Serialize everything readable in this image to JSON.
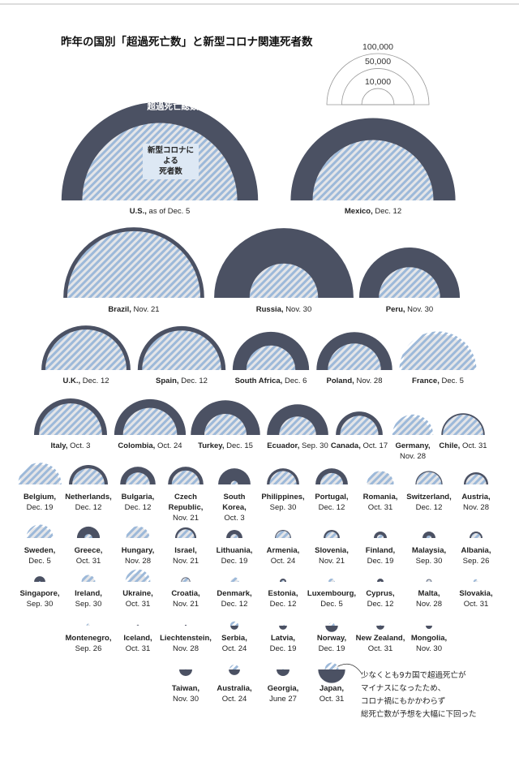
{
  "chart_data": {
    "type": "semicircle",
    "title": "昨年の国別「超過死亡数」と新型コロナ関連死者数",
    "size_legend": [
      {
        "value": 100000,
        "label": "100,000"
      },
      {
        "value": 50000,
        "label": "50,000"
      },
      {
        "value": 10000,
        "label": "10,000"
      }
    ],
    "categories": [
      "U.S.,",
      "Mexico,",
      "Brazil,",
      "Russia,",
      "Peru,",
      "U.K.,",
      "Spain,",
      "South Africa,",
      "Poland,",
      "France,",
      "Italy,",
      "Colombia,",
      "Turkey,",
      "Ecuador,",
      "Canada,",
      "Germany,",
      "Chile,",
      "Belgium,",
      "Netherlands,",
      "Bulgaria,",
      "Czech\nRepublic,",
      "South\nKorea,",
      "Philippines,",
      "Portugal,",
      "Romania,",
      "Switzerland,",
      "Austria,",
      "Sweden,",
      "Greece,",
      "Hungary,",
      "Israel,",
      "Lithuania,",
      "Armenia,",
      "Slovenia,",
      "Finland,",
      "Malaysia,",
      "Albania,",
      "Singapore,",
      "Ireland,",
      "Ukraine,",
      "Croatia,",
      "Denmark,",
      "Estonia,",
      "Luxembourg,",
      "Cyprus,",
      "Malta,",
      "Slovakia,",
      "Montenegro,",
      "Iceland,",
      "Liechtenstein,",
      "Serbia,",
      "Latvia,",
      "Norway,",
      "New Zealand,",
      "Mongolia,",
      "Taiwan,",
      "Australia,",
      "Georgia,",
      "Japan,"
    ],
    "dates": [
      "as of Dec. 5",
      "Dec. 12",
      "Nov. 21",
      "Nov. 30",
      "Nov. 30",
      "Dec. 12",
      "Dec. 12",
      "Dec. 6",
      "Nov. 28",
      "Dec. 5",
      "Oct. 3",
      "Oct. 24",
      "Dec. 15",
      "Sep. 30",
      "Oct. 17",
      "Nov. 28",
      "Oct. 31",
      "Dec. 19",
      "Dec. 12",
      "Dec. 12",
      "Nov. 21",
      "Oct. 3",
      "Sep. 30",
      "Dec. 12",
      "Oct. 31",
      "Dec. 12",
      "Nov. 28",
      "Dec. 5",
      "Oct. 31",
      "Nov. 28",
      "Nov. 21",
      "Dec. 19",
      "Oct. 24",
      "Nov. 21",
      "Dec. 19",
      "Sep. 30",
      "Sep. 26",
      "Sep. 30",
      "Sep. 30",
      "Oct. 31",
      "Nov. 21",
      "Dec. 12",
      "Dec. 12",
      "Dec. 5",
      "Dec. 12",
      "Nov. 28",
      "Oct. 31",
      "Sep. 26",
      "Oct. 31",
      "Nov. 28",
      "Oct. 24",
      "Dec. 19",
      "Dec. 19",
      "Oct. 31",
      "Nov. 30",
      "Nov. 30",
      "Oct. 24",
      "June 27",
      "Oct. 31"
    ],
    "series": [
      {
        "name": "超過死亡総数",
        "color": "#4b5163",
        "values": [
          370000,
          260000,
          190000,
          186000,
          97000,
          76000,
          74000,
          56000,
          55000,
          50000,
          51000,
          49000,
          46000,
          36000,
          21000,
          12000,
          18000,
          15000,
          14500,
          12000,
          12000,
          10000,
          10000,
          10000,
          6500,
          7000,
          5700,
          5000,
          5000,
          4500,
          4300,
          2500,
          2500,
          2500,
          1600,
          1600,
          1600,
          1200,
          1500,
          3000,
          800,
          500,
          400,
          300,
          400,
          300,
          100,
          80,
          40,
          30,
          -600,
          -600,
          -1500,
          -600,
          -400,
          -1600,
          -1200,
          -1600,
          -7000
        ]
      },
      {
        "name": "新型コロナに\nよる\n死者数",
        "color": "#9db9d9",
        "values": [
          230000,
          140000,
          170000,
          45000,
          36000,
          63000,
          60000,
          23000,
          27000,
          57000,
          38000,
          28000,
          17000,
          13000,
          14000,
          16000,
          15700,
          18000,
          10000,
          5500,
          7500,
          500,
          7000,
          5000,
          7000,
          6000,
          4000,
          7000,
          600,
          5300,
          2900,
          600,
          2000,
          1500,
          450,
          250,
          900,
          28,
          1800,
          6000,
          600,
          800,
          100,
          400,
          20,
          180,
          270,
          150,
          10,
          1,
          700,
          100,
          380,
          25,
          0,
          7,
          900,
          15,
          1800
        ]
      }
    ],
    "annotation": "少なくとも9カ国で超過死亡が\nマイナスになったため、\nコロナ禍にもかかわらず\n総死亡数が予想を大幅に下回った"
  }
}
